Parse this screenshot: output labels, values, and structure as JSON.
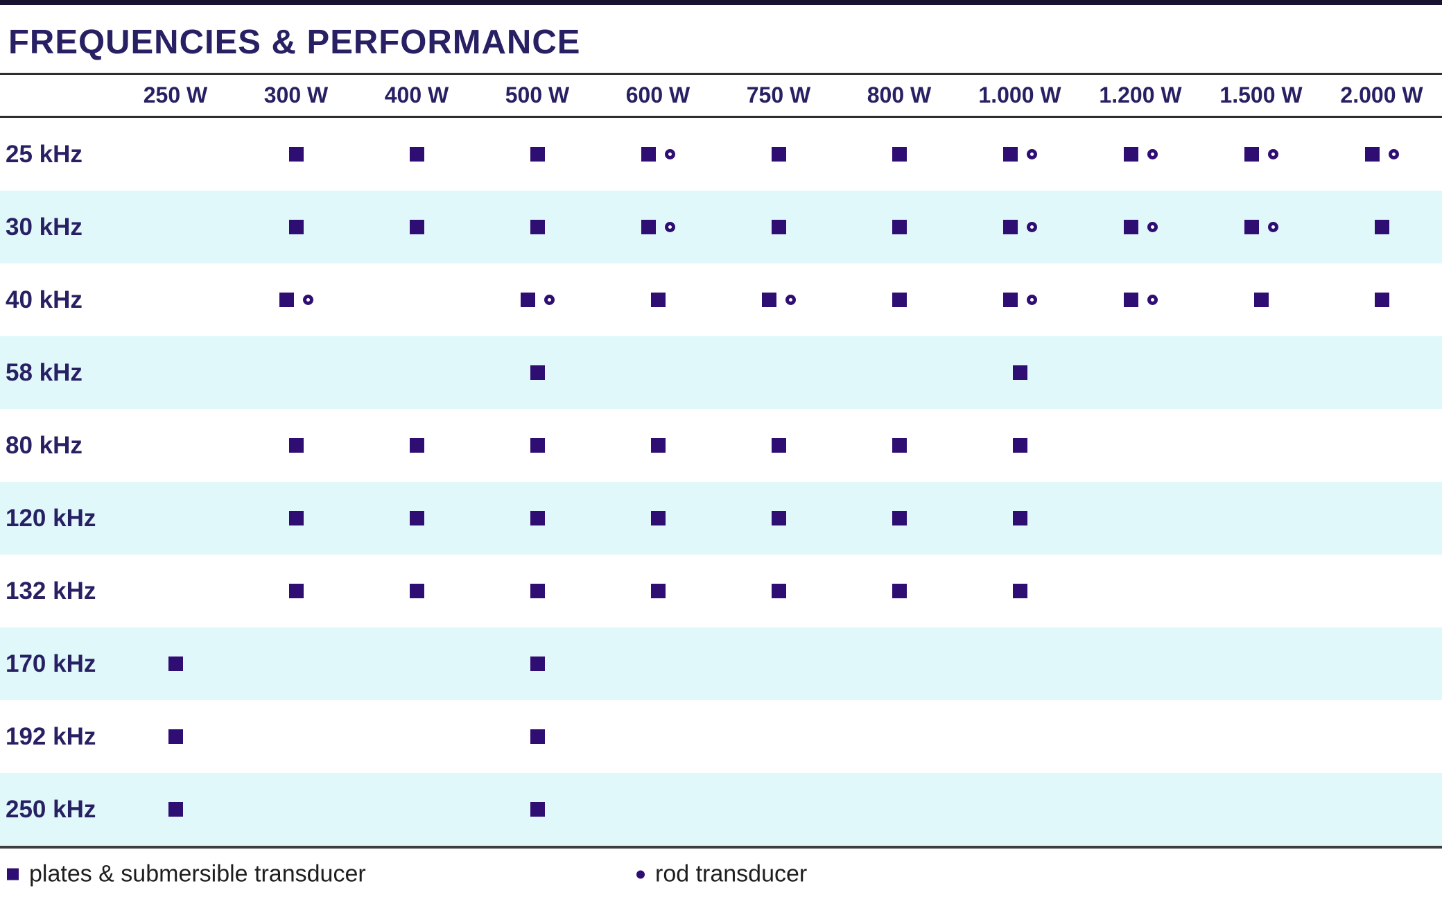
{
  "page": {
    "title": "FREQUENCIES & PERFORMANCE"
  },
  "table": {
    "columns": [
      "250 W",
      "300 W",
      "400 W",
      "500 W",
      "600 W",
      "750 W",
      "800 W",
      "1.000 W",
      "1.200 W",
      "1.500 W",
      "2.000 W"
    ],
    "rows": [
      {
        "label": "25 kHz",
        "cells": [
          [],
          [
            "square"
          ],
          [
            "square"
          ],
          [
            "square"
          ],
          [
            "square",
            "circle"
          ],
          [
            "square"
          ],
          [
            "square"
          ],
          [
            "square",
            "circle"
          ],
          [
            "square",
            "circle"
          ],
          [
            "square",
            "circle"
          ],
          [
            "square",
            "circle"
          ]
        ]
      },
      {
        "label": "30 kHz",
        "cells": [
          [],
          [
            "square"
          ],
          [
            "square"
          ],
          [
            "square"
          ],
          [
            "square",
            "circle"
          ],
          [
            "square"
          ],
          [
            "square"
          ],
          [
            "square",
            "circle"
          ],
          [
            "square",
            "circle"
          ],
          [
            "square",
            "circle"
          ],
          [
            "square"
          ]
        ]
      },
      {
        "label": "40 kHz",
        "cells": [
          [],
          [
            "square",
            "circle"
          ],
          [],
          [
            "square",
            "circle"
          ],
          [
            "square"
          ],
          [
            "square",
            "circle"
          ],
          [
            "square"
          ],
          [
            "square",
            "circle"
          ],
          [
            "square",
            "circle"
          ],
          [
            "square"
          ],
          [
            "square"
          ]
        ]
      },
      {
        "label": "58 kHz",
        "cells": [
          [],
          [],
          [],
          [
            "square"
          ],
          [],
          [],
          [],
          [
            "square"
          ],
          [],
          [],
          []
        ]
      },
      {
        "label": "80 kHz",
        "cells": [
          [],
          [
            "square"
          ],
          [
            "square"
          ],
          [
            "square"
          ],
          [
            "square"
          ],
          [
            "square"
          ],
          [
            "square"
          ],
          [
            "square"
          ],
          [],
          [],
          []
        ]
      },
      {
        "label": "120 kHz",
        "cells": [
          [],
          [
            "square"
          ],
          [
            "square"
          ],
          [
            "square"
          ],
          [
            "square"
          ],
          [
            "square"
          ],
          [
            "square"
          ],
          [
            "square"
          ],
          [],
          [],
          []
        ]
      },
      {
        "label": "132 kHz",
        "cells": [
          [],
          [
            "square"
          ],
          [
            "square"
          ],
          [
            "square"
          ],
          [
            "square"
          ],
          [
            "square"
          ],
          [
            "square"
          ],
          [
            "square"
          ],
          [],
          [],
          []
        ]
      },
      {
        "label": "170 kHz",
        "cells": [
          [
            "square"
          ],
          [],
          [],
          [
            "square"
          ],
          [],
          [],
          [],
          [],
          [],
          [],
          []
        ]
      },
      {
        "label": "192 kHz",
        "cells": [
          [
            "square"
          ],
          [],
          [],
          [
            "square"
          ],
          [],
          [],
          [],
          [],
          [],
          [],
          []
        ]
      },
      {
        "label": "250 kHz",
        "cells": [
          [
            "square"
          ],
          [],
          [],
          [
            "square"
          ],
          [],
          [],
          [],
          [],
          [],
          [],
          []
        ]
      }
    ]
  },
  "legend": {
    "square_label": "plates & submersible transducer",
    "circle_label": "rod transducer"
  },
  "colors": {
    "brand_navy": "#272063",
    "mark_indigo": "#2f0e73",
    "row_highlight": "#e1f8fb",
    "rule_dark": "#2e2e2e",
    "top_bar": "#191231",
    "legend_text": "#1e1e1e"
  }
}
